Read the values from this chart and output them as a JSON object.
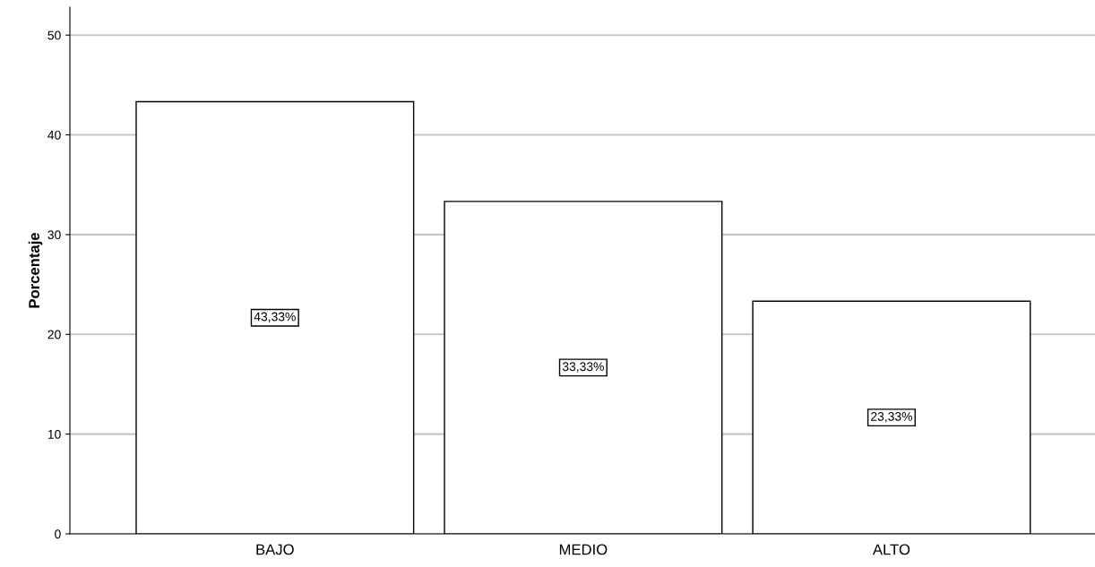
{
  "chart_data": {
    "type": "bar",
    "ylabel": "Porcentaje",
    "categories": [
      "BAJO",
      "MEDIO",
      "ALTO"
    ],
    "values": [
      43.33,
      33.33,
      23.33
    ],
    "value_labels": [
      "43,33%",
      "33,33%",
      "23,33%"
    ],
    "color": "#ffffff",
    "ylim": [
      0,
      52.8
    ],
    "yticks": [
      0,
      10,
      20,
      30,
      40,
      50
    ],
    "grid": "y",
    "legend": false
  }
}
